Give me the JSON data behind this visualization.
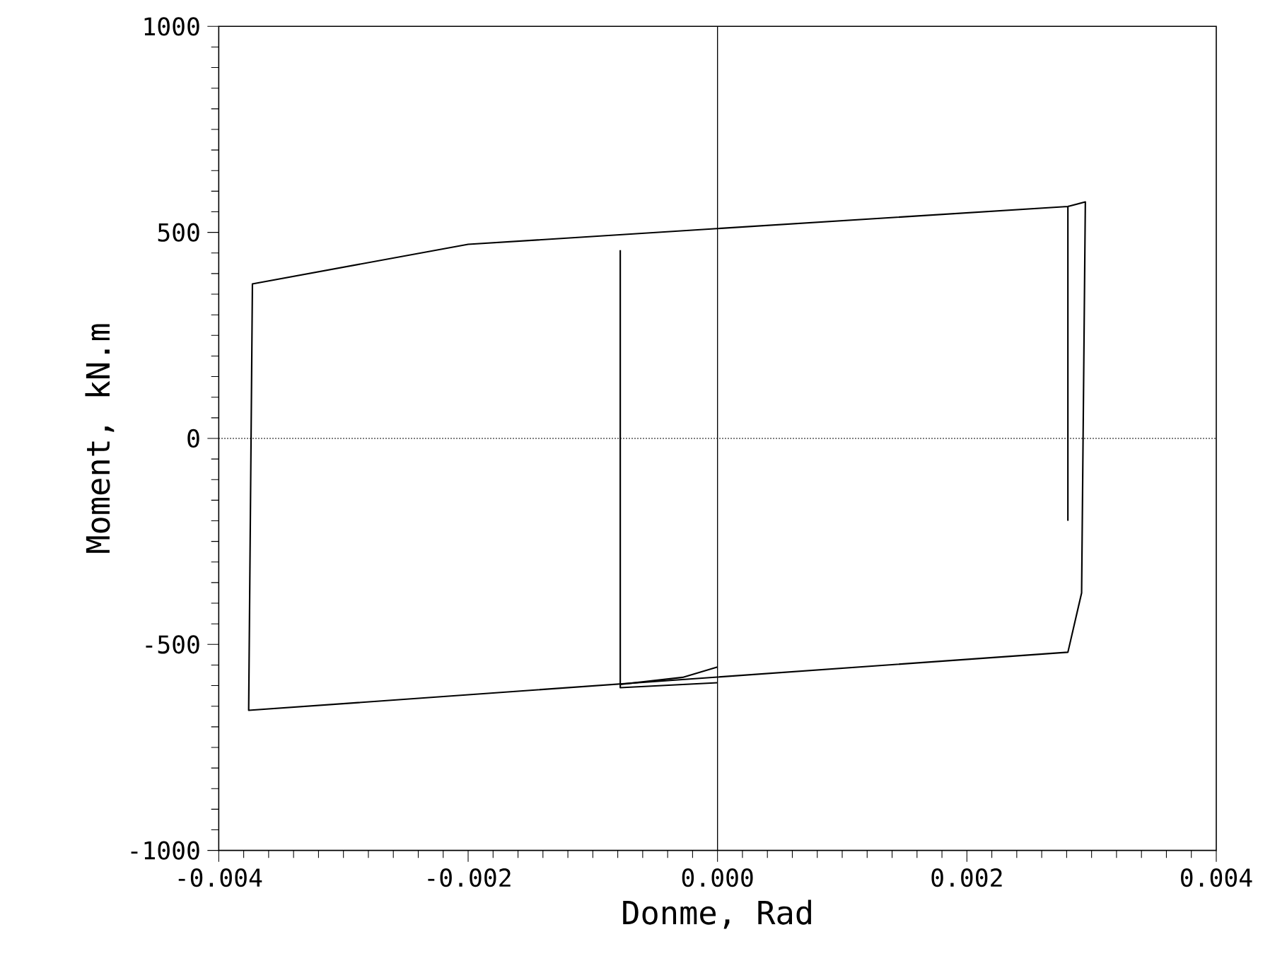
{
  "chart_data": {
    "type": "line",
    "xlabel": "Donme, Rad",
    "ylabel": "Moment, kN.m",
    "xlim": [
      -0.004,
      0.004
    ],
    "ylim": [
      -1000,
      1000
    ],
    "xticks": [
      {
        "value": -0.004,
        "label": "-0.004"
      },
      {
        "value": -0.002,
        "label": "-0.002"
      },
      {
        "value": 0,
        "label": "0.000"
      },
      {
        "value": 0.002,
        "label": "0.002"
      },
      {
        "value": 0.004,
        "label": "0.004"
      }
    ],
    "yticks": [
      -1000,
      -500,
      0,
      500,
      1000
    ],
    "grid": false,
    "marker": "none",
    "line_style": "solid",
    "ref_lines": [
      {
        "axis": "x",
        "value": 0,
        "color": "#000000",
        "line_style": "solid"
      },
      {
        "axis": "y",
        "value": 0,
        "color": "#000000",
        "line_style": "dotted"
      }
    ],
    "series": [
      {
        "color": "#000000",
        "x": [
          0.00281,
          0.00281,
          -0.002,
          -0.00373,
          -0.00376,
          0.00281,
          0.00292,
          0.00295,
          0.00281
        ],
        "values": [
          -200,
          563,
          471,
          375,
          -660,
          -519,
          -375,
          574,
          563
        ]
      },
      {
        "color": "#000000",
        "x": [
          -0.00078,
          -0.00078,
          0
        ],
        "values": [
          457,
          -605,
          -593
        ]
      },
      {
        "color": "#000000",
        "x": [
          -0.00078,
          -0.00028,
          0
        ],
        "values": [
          -597,
          -580,
          -555
        ]
      }
    ]
  }
}
